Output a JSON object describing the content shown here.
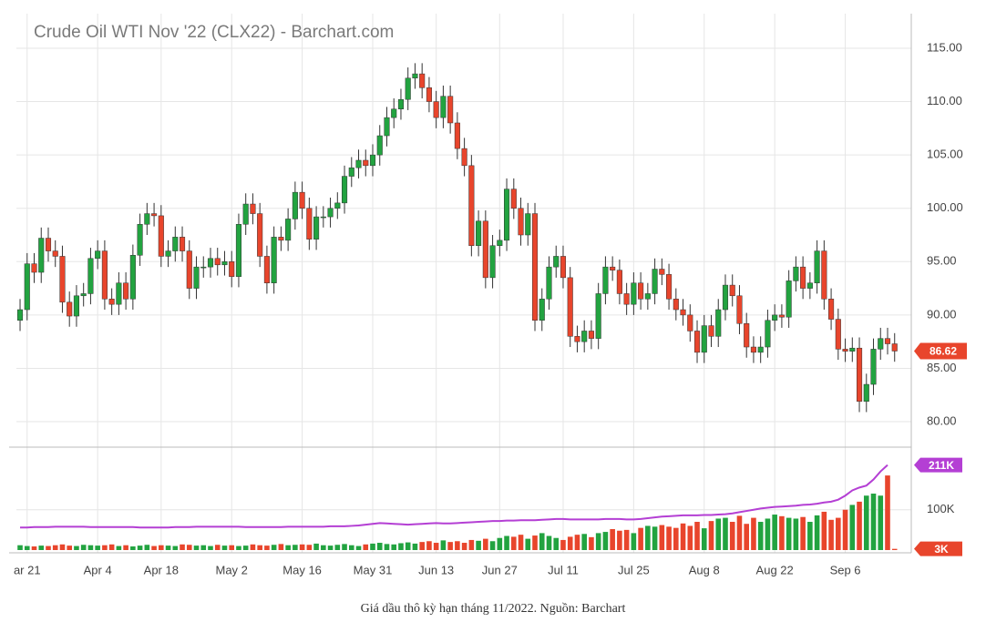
{
  "chart_data": {
    "type": "candlestick",
    "title": "Crude Oil WTI Nov '22 (CLX22) - Barchart.com",
    "up_color": "#22a340",
    "down_color": "#e8452c",
    "grid": true,
    "xlim": [
      -0.52,
      126.36
    ],
    "xticks": [
      {
        "value": 1,
        "label": "ar 21"
      },
      {
        "value": 11,
        "label": "Apr 4"
      },
      {
        "value": 20,
        "label": "Apr 18"
      },
      {
        "value": 30,
        "label": "May 2"
      },
      {
        "value": 40,
        "label": "May 16"
      },
      {
        "value": 50,
        "label": "May 31"
      },
      {
        "value": 59,
        "label": "Jun 13"
      },
      {
        "value": 68,
        "label": "Jun 27"
      },
      {
        "value": 77,
        "label": "Jul 11"
      },
      {
        "value": 87,
        "label": "Jul 25"
      },
      {
        "value": 97,
        "label": "Aug 8"
      },
      {
        "value": 107,
        "label": "Aug 22"
      },
      {
        "value": 117,
        "label": "Sep 6"
      }
    ],
    "ylim": [
      77.7,
      118.24
    ],
    "yticks": [
      {
        "value": 80,
        "label": "80.00"
      },
      {
        "value": 85,
        "label": "85.00"
      },
      {
        "value": 90,
        "label": "90.00"
      },
      {
        "value": 95,
        "label": "95.00"
      },
      {
        "value": 100,
        "label": "100.00"
      },
      {
        "value": 105,
        "label": "105.00"
      },
      {
        "value": 110,
        "label": "110.00"
      },
      {
        "value": 115,
        "label": "115.00"
      }
    ],
    "open": [
      89.5,
      90.5,
      94.8,
      94.0,
      97.2,
      96.0,
      95.5,
      91.2,
      89.9,
      91.8,
      92.0,
      95.3,
      96.0,
      91.5,
      91.0,
      93.0,
      91.5,
      95.6,
      98.5,
      99.5,
      99.3,
      95.5,
      96.0,
      97.3,
      96.0,
      92.5,
      94.5,
      94.5,
      95.3,
      94.7,
      95.0,
      93.6,
      98.5,
      100.4,
      99.5,
      95.5,
      93.0,
      97.3,
      97.0,
      99.0,
      101.5,
      100.0,
      97.1,
      99.2,
      99.2,
      100.0,
      100.5,
      103.0,
      103.8,
      104.5,
      104.0,
      105.0,
      106.8,
      108.5,
      109.3,
      110.2,
      112.2,
      112.6,
      111.3,
      110.0,
      108.5,
      110.5,
      108.0,
      105.6,
      104.0,
      96.5,
      98.8,
      93.5,
      96.5,
      97.0,
      101.8,
      100.0,
      97.5,
      99.5,
      89.5,
      91.5,
      94.5,
      95.5,
      93.5,
      88.0,
      87.5,
      88.5,
      87.8,
      92.0,
      94.5,
      94.2,
      92.0,
      91.0,
      93.0,
      91.5,
      92.0,
      94.3,
      93.8,
      91.5,
      90.5,
      90.0,
      88.5,
      86.5,
      89.0,
      88.0,
      90.5,
      92.8,
      91.8,
      89.2,
      87.0,
      86.5,
      87.0,
      89.5,
      90.0,
      89.8,
      93.2,
      94.5,
      92.5,
      93.0,
      96.0,
      91.5,
      89.6,
      86.8,
      86.6,
      86.9,
      81.9,
      83.5,
      86.8,
      87.8,
      87.3
    ],
    "high": [
      91.5,
      95.8,
      95.8,
      98.2,
      98.2,
      97.0,
      96.5,
      92.2,
      92.8,
      93.0,
      96.3,
      97.0,
      97.0,
      92.5,
      94.0,
      94.0,
      96.6,
      99.5,
      100.5,
      100.5,
      100.3,
      97.0,
      98.3,
      98.3,
      97.0,
      95.5,
      95.5,
      96.3,
      96.3,
      96.0,
      96.0,
      99.5,
      101.4,
      101.4,
      100.5,
      96.5,
      98.3,
      98.3,
      100.0,
      102.5,
      102.5,
      101.0,
      100.2,
      100.2,
      101.0,
      101.5,
      104.0,
      104.8,
      105.5,
      105.5,
      106.0,
      107.8,
      109.5,
      110.3,
      111.2,
      113.2,
      113.6,
      113.6,
      112.3,
      111.0,
      111.5,
      111.5,
      109.0,
      106.6,
      105.0,
      99.8,
      99.8,
      97.5,
      98.0,
      102.8,
      102.8,
      101.0,
      100.5,
      100.5,
      92.5,
      95.5,
      96.5,
      96.5,
      94.5,
      89.0,
      89.5,
      89.5,
      93.0,
      95.5,
      95.5,
      95.2,
      93.0,
      94.0,
      94.0,
      93.0,
      95.3,
      95.3,
      94.8,
      92.5,
      91.5,
      91.0,
      89.5,
      90.0,
      90.0,
      91.5,
      93.8,
      93.8,
      92.8,
      90.2,
      88.0,
      88.0,
      90.5,
      91.0,
      91.0,
      94.2,
      95.5,
      95.5,
      94.0,
      97.0,
      97.0,
      92.5,
      90.6,
      87.8,
      87.9,
      87.9,
      84.5,
      87.8,
      88.8,
      88.8,
      88.3
    ],
    "low": [
      88.5,
      89.5,
      93.0,
      93.0,
      95.0,
      94.5,
      90.2,
      88.9,
      88.9,
      90.8,
      91.0,
      94.3,
      90.5,
      90.0,
      90.0,
      90.5,
      90.5,
      94.6,
      97.5,
      98.3,
      94.5,
      94.5,
      95.0,
      95.0,
      91.5,
      91.5,
      93.5,
      93.5,
      93.7,
      93.7,
      92.6,
      92.6,
      97.5,
      98.5,
      94.5,
      92.0,
      92.0,
      96.0,
      96.0,
      98.0,
      99.0,
      96.1,
      96.1,
      98.2,
      98.2,
      99.0,
      99.5,
      102.0,
      102.8,
      103.0,
      103.0,
      104.0,
      105.8,
      107.5,
      108.3,
      109.2,
      111.2,
      110.3,
      109.0,
      107.5,
      107.5,
      107.0,
      104.6,
      103.0,
      95.5,
      95.5,
      92.5,
      92.5,
      95.5,
      96.0,
      99.0,
      96.5,
      96.5,
      88.5,
      88.5,
      90.5,
      93.5,
      92.5,
      87.0,
      86.5,
      86.5,
      86.8,
      86.8,
      91.0,
      93.2,
      91.0,
      90.0,
      90.0,
      90.5,
      90.5,
      91.0,
      92.8,
      90.5,
      89.5,
      89.0,
      87.5,
      85.5,
      85.5,
      87.0,
      87.0,
      89.5,
      90.8,
      88.2,
      86.0,
      85.5,
      85.5,
      86.0,
      88.5,
      88.8,
      88.8,
      92.2,
      91.5,
      91.5,
      92.0,
      90.5,
      88.6,
      85.8,
      85.6,
      85.6,
      80.9,
      80.9,
      82.5,
      85.8,
      86.3,
      85.62
    ],
    "close": [
      90.5,
      94.8,
      94.0,
      97.2,
      96.0,
      95.5,
      91.2,
      89.9,
      91.8,
      92.0,
      95.3,
      96.0,
      91.5,
      91.0,
      93.0,
      91.5,
      95.6,
      98.5,
      99.5,
      99.3,
      95.5,
      96.0,
      97.3,
      96.0,
      92.5,
      94.5,
      94.5,
      95.3,
      94.7,
      95.0,
      93.6,
      98.5,
      100.4,
      99.5,
      95.5,
      93.0,
      97.3,
      97.0,
      99.0,
      101.5,
      100.0,
      97.1,
      99.2,
      99.2,
      100.0,
      100.5,
      103.0,
      103.8,
      104.5,
      104.0,
      105.0,
      106.8,
      108.5,
      109.3,
      110.2,
      112.2,
      112.6,
      111.3,
      110.0,
      108.5,
      110.5,
      108.0,
      105.6,
      104.0,
      96.5,
      98.8,
      93.5,
      96.5,
      97.0,
      101.8,
      100.0,
      97.5,
      99.5,
      89.5,
      91.5,
      94.5,
      95.5,
      93.5,
      88.0,
      87.5,
      88.5,
      87.8,
      92.0,
      94.5,
      94.2,
      92.0,
      91.0,
      93.0,
      91.5,
      92.0,
      94.3,
      93.8,
      91.5,
      90.5,
      90.0,
      88.5,
      86.5,
      89.0,
      88.0,
      90.5,
      92.8,
      91.8,
      89.2,
      87.0,
      86.5,
      87.0,
      89.5,
      90.0,
      89.8,
      93.2,
      94.5,
      92.5,
      93.0,
      96.0,
      91.5,
      89.6,
      86.8,
      86.6,
      86.9,
      81.9,
      83.5,
      86.8,
      87.8,
      87.3,
      86.62
    ],
    "volume": {
      "y2lim": [
        0,
        253000
      ],
      "y2ticks": [
        {
          "value": 3000,
          "label": "3K",
          "color": "#e8452c"
        },
        {
          "value": 100000,
          "label": "100K"
        },
        {
          "value": 211000,
          "label": "211K",
          "color": "#b43fd4"
        }
      ],
      "values": [
        12000,
        10000,
        9000,
        11000,
        10000,
        12000,
        14000,
        11000,
        10000,
        13000,
        12000,
        11000,
        12000,
        14000,
        10000,
        12000,
        9000,
        11000,
        13000,
        10000,
        12000,
        11000,
        10000,
        14000,
        13000,
        11000,
        12000,
        10000,
        13000,
        11000,
        12000,
        10000,
        11000,
        14000,
        12000,
        11000,
        13000,
        15000,
        12000,
        13000,
        14000,
        13000,
        16000,
        12000,
        11000,
        13000,
        15000,
        12000,
        10000,
        14000,
        16000,
        18000,
        15000,
        14000,
        17000,
        19000,
        16000,
        20000,
        22000,
        18000,
        24000,
        20000,
        22000,
        18000,
        25000,
        23000,
        28000,
        22000,
        30000,
        35000,
        33000,
        38000,
        28000,
        36000,
        42000,
        35000,
        30000,
        25000,
        33000,
        38000,
        40000,
        32000,
        42000,
        45000,
        52000,
        48000,
        50000,
        42000,
        55000,
        60000,
        58000,
        62000,
        58000,
        55000,
        66000,
        60000,
        70000,
        54000,
        72000,
        78000,
        80000,
        70000,
        85000,
        65000,
        80000,
        70000,
        78000,
        88000,
        84000,
        80000,
        78000,
        82000,
        70000,
        86000,
        95000,
        75000,
        80000,
        100000,
        112000,
        120000,
        135000,
        140000,
        135000,
        185000,
        3000
      ],
      "line": {
        "color": "#b43fd4",
        "values": [
          56000,
          56000,
          57000,
          57000,
          57000,
          58000,
          58000,
          58000,
          58000,
          58000,
          57000,
          57000,
          57000,
          57000,
          57000,
          57000,
          57000,
          56000,
          56000,
          56000,
          56000,
          56000,
          57000,
          57000,
          57000,
          58000,
          58000,
          58000,
          58000,
          58000,
          58000,
          58000,
          57000,
          57000,
          57000,
          57000,
          57000,
          57000,
          58000,
          58000,
          58000,
          58000,
          58000,
          58000,
          59000,
          59000,
          59000,
          60000,
          61000,
          63000,
          65000,
          67000,
          66000,
          65000,
          64000,
          63000,
          64000,
          65000,
          66000,
          67000,
          66000,
          66000,
          67000,
          68000,
          69000,
          70000,
          71000,
          72000,
          72000,
          73000,
          73000,
          74000,
          74000,
          74000,
          75000,
          76000,
          77000,
          77000,
          76000,
          76000,
          76000,
          76000,
          76000,
          77000,
          77000,
          77000,
          76000,
          76000,
          77000,
          79000,
          81000,
          83000,
          84000,
          85000,
          86000,
          86000,
          86000,
          87000,
          87000,
          88000,
          89000,
          91000,
          94000,
          97000,
          100000,
          103000,
          105000,
          107000,
          108000,
          109000,
          110000,
          112000,
          113000,
          115000,
          118000,
          120000,
          125000,
          135000,
          148000,
          155000,
          160000,
          175000,
          195000,
          211000,
          null
        ]
      }
    }
  },
  "caption": "Giá dầu thô kỳ hạn tháng 11/2022. Nguồn: Barchart"
}
